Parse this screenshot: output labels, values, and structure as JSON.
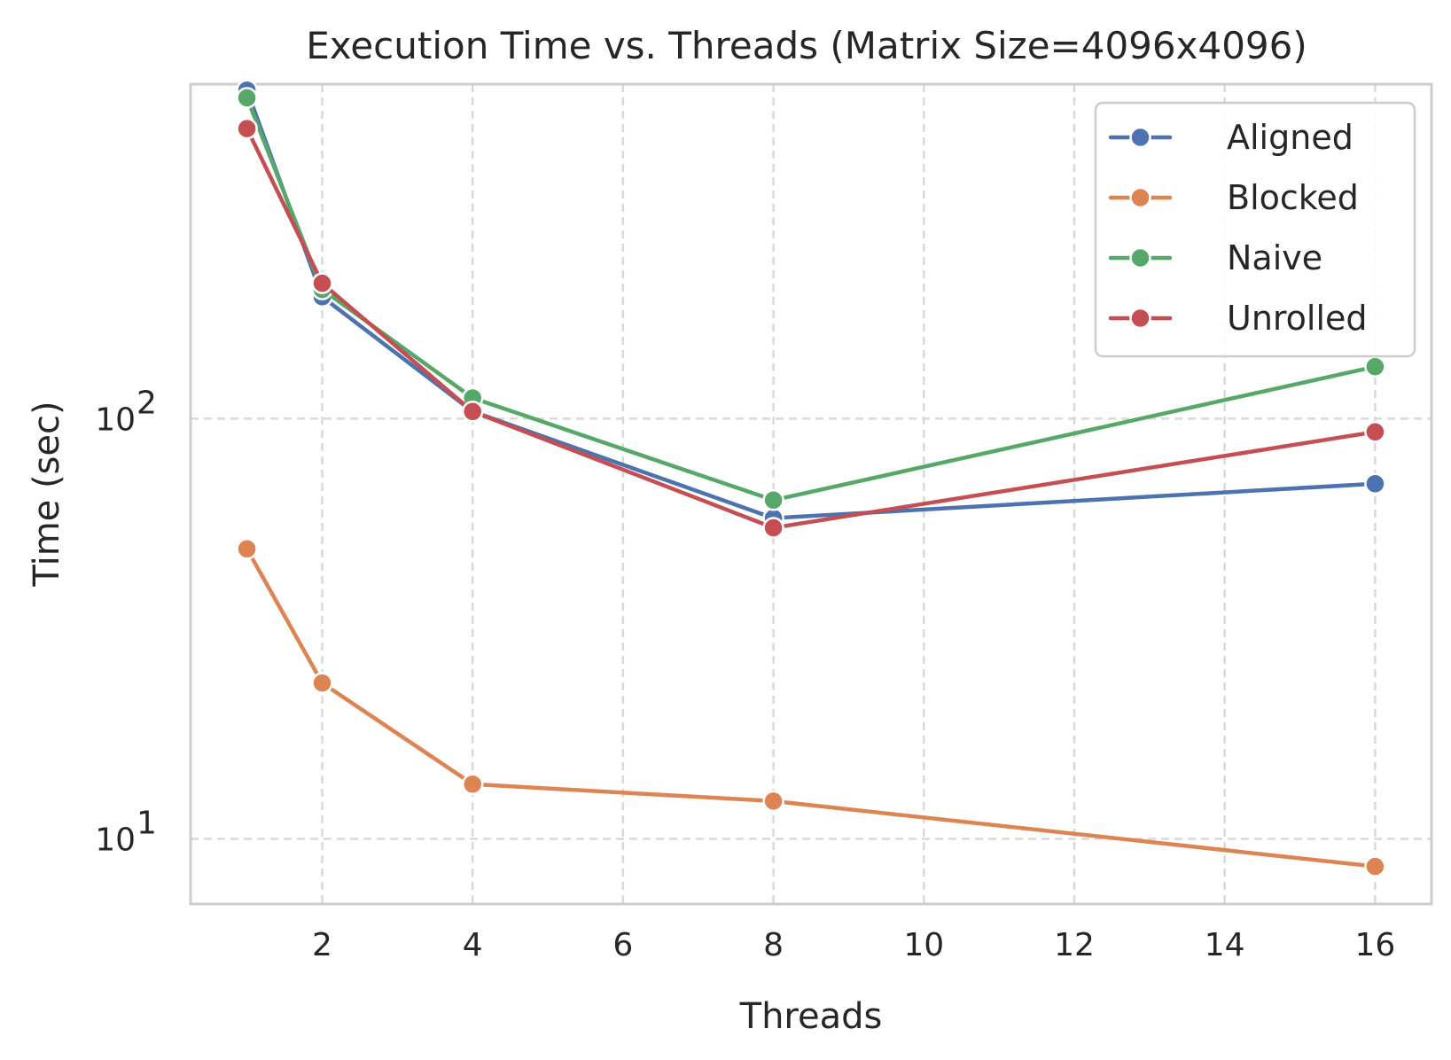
{
  "chart_data": {
    "type": "line",
    "title": "Execution Time vs. Threads (Matrix Size=4096x4096)",
    "xlabel": "Threads",
    "ylabel": "Time (sec)",
    "yscale": "log",
    "xlim": [
      0.25,
      16.75
    ],
    "ylim": [
      7,
      625
    ],
    "x": [
      1,
      2,
      4,
      8,
      16
    ],
    "xticks": [
      {
        "value": 2,
        "label": "2"
      },
      {
        "value": 4,
        "label": "4"
      },
      {
        "value": 6,
        "label": "6"
      },
      {
        "value": 8,
        "label": "8"
      },
      {
        "value": 10,
        "label": "10"
      },
      {
        "value": 12,
        "label": "12"
      },
      {
        "value": 14,
        "label": "14"
      },
      {
        "value": 16,
        "label": "16"
      }
    ],
    "yticks": [
      {
        "value": 10,
        "base": "10",
        "exp": "1"
      },
      {
        "value": 100,
        "base": "10",
        "exp": "2"
      }
    ],
    "grid": true,
    "legend_position": "top-right",
    "series": [
      {
        "name": "Aligned",
        "color": "#4c72b0",
        "values": [
          605,
          195,
          104,
          58,
          70
        ]
      },
      {
        "name": "Blocked",
        "color": "#dd8452",
        "values": [
          49,
          23.5,
          13.5,
          12.3,
          8.6
        ]
      },
      {
        "name": "Naive",
        "color": "#55a868",
        "values": [
          580,
          203,
          112,
          64,
          133
        ]
      },
      {
        "name": "Unrolled",
        "color": "#c44e52",
        "values": [
          490,
          210,
          104,
          55,
          93
        ]
      }
    ]
  }
}
